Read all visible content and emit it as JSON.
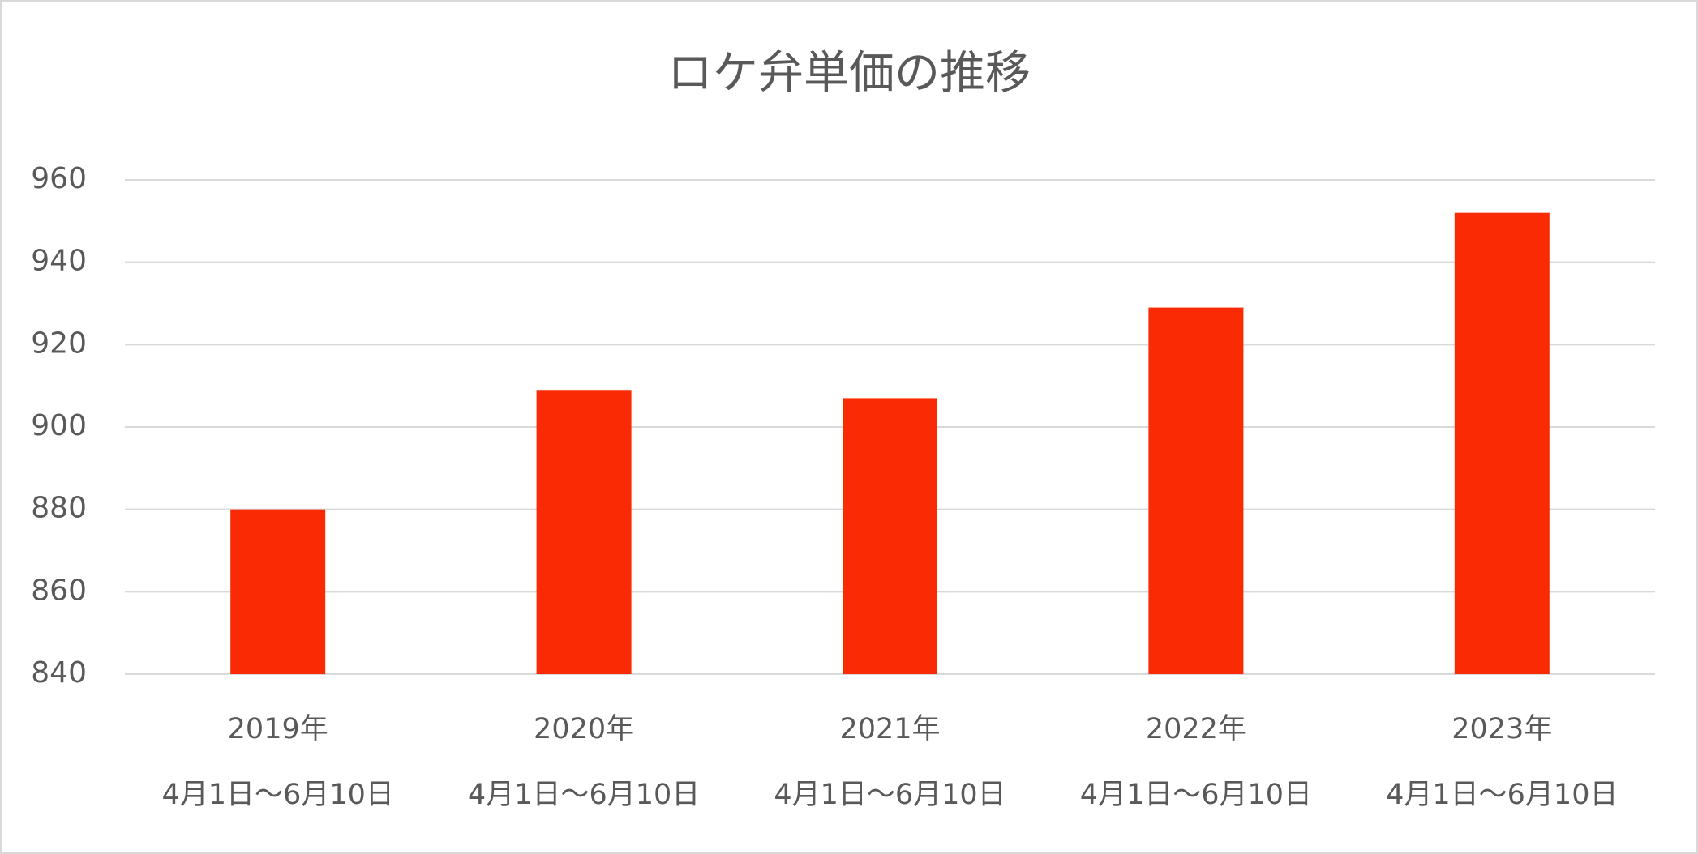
{
  "chart_data": {
    "type": "bar",
    "title": "ロケ弁単価の推移",
    "categories": [
      [
        "2019年",
        "4月1日～6月10日"
      ],
      [
        "2020年",
        "4月1日～6月10日"
      ],
      [
        "2021年",
        "4月1日～6月10日"
      ],
      [
        "2022年",
        "4月1日～6月10日"
      ],
      [
        "2023年",
        "4月1日～6月10日"
      ]
    ],
    "values": [
      880,
      909,
      907,
      929,
      952
    ],
    "color": "#fa2a05",
    "ylim": [
      840,
      960
    ],
    "yticks": [
      840,
      860,
      880,
      900,
      920,
      940,
      960
    ],
    "grid": true
  }
}
